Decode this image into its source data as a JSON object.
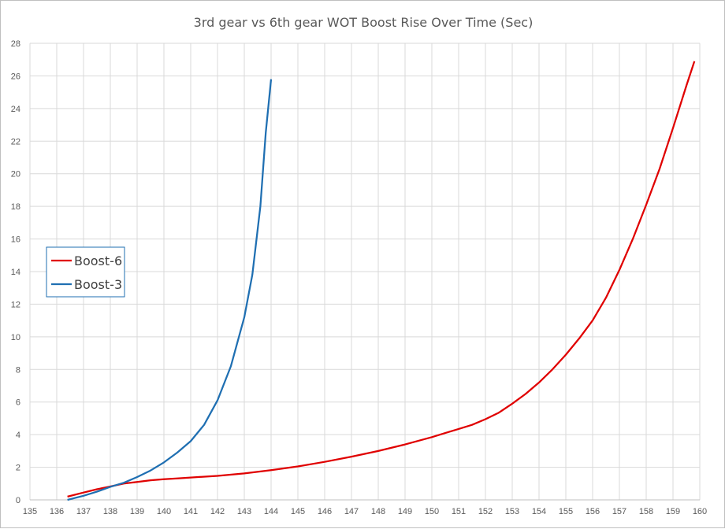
{
  "chart_data": {
    "type": "line",
    "title": "3rd gear vs 6th gear WOT Boost Rise Over Time (Sec)",
    "xlabel": "",
    "ylabel": "",
    "xlim": [
      135,
      160
    ],
    "ylim": [
      0,
      28
    ],
    "x_ticks": [
      135,
      136,
      137,
      138,
      139,
      140,
      141,
      142,
      143,
      144,
      145,
      146,
      147,
      148,
      149,
      150,
      151,
      152,
      153,
      154,
      155,
      156,
      157,
      158,
      159,
      160
    ],
    "y_ticks": [
      0,
      2,
      4,
      6,
      8,
      10,
      12,
      14,
      16,
      18,
      20,
      22,
      24,
      26,
      28
    ],
    "grid": true,
    "legend_position": "left-middle",
    "series": [
      {
        "name": "Boost-6",
        "color": "#e00000",
        "points": [
          [
            136.4,
            0.2
          ],
          [
            137,
            0.45
          ],
          [
            137.5,
            0.65
          ],
          [
            138,
            0.82
          ],
          [
            138.5,
            1.0
          ],
          [
            139,
            1.1
          ],
          [
            139.5,
            1.2
          ],
          [
            140,
            1.27
          ],
          [
            140.5,
            1.32
          ],
          [
            141,
            1.37
          ],
          [
            142,
            1.47
          ],
          [
            143,
            1.62
          ],
          [
            144,
            1.82
          ],
          [
            145,
            2.05
          ],
          [
            146,
            2.33
          ],
          [
            147,
            2.65
          ],
          [
            148,
            3.0
          ],
          [
            149,
            3.4
          ],
          [
            150,
            3.85
          ],
          [
            150.5,
            4.1
          ],
          [
            151,
            4.35
          ],
          [
            151.5,
            4.6
          ],
          [
            152,
            4.95
          ],
          [
            152.5,
            5.35
          ],
          [
            153,
            5.9
          ],
          [
            153.5,
            6.5
          ],
          [
            154,
            7.2
          ],
          [
            154.5,
            8.0
          ],
          [
            155,
            8.9
          ],
          [
            155.5,
            9.9
          ],
          [
            156,
            11.0
          ],
          [
            156.5,
            12.4
          ],
          [
            157,
            14.1
          ],
          [
            157.5,
            16.0
          ],
          [
            158,
            18.1
          ],
          [
            158.5,
            20.3
          ],
          [
            159,
            22.8
          ],
          [
            159.5,
            25.4
          ],
          [
            159.8,
            26.9
          ]
        ]
      },
      {
        "name": "Boost-3",
        "color": "#1f6fb2",
        "points": [
          [
            136.4,
            0.0
          ],
          [
            137,
            0.25
          ],
          [
            137.5,
            0.5
          ],
          [
            138,
            0.8
          ],
          [
            138.5,
            1.05
          ],
          [
            139,
            1.4
          ],
          [
            139.5,
            1.8
          ],
          [
            140,
            2.3
          ],
          [
            140.5,
            2.9
          ],
          [
            141,
            3.6
          ],
          [
            141.5,
            4.6
          ],
          [
            142,
            6.1
          ],
          [
            142.5,
            8.2
          ],
          [
            143,
            11.2
          ],
          [
            143.3,
            13.8
          ],
          [
            143.6,
            18.0
          ],
          [
            143.8,
            22.5
          ],
          [
            144,
            25.8
          ]
        ]
      }
    ]
  }
}
